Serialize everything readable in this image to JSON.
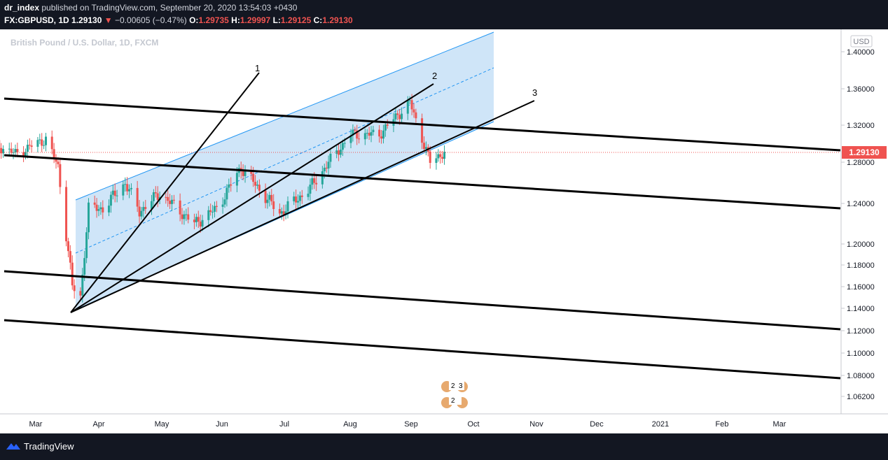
{
  "header": {
    "publisher": "dr_index",
    "published_text": " published on TradingView.com, September 20, 2020 13:54:03 +0430",
    "symbol": "FX:GBPUSD, 1D",
    "last": "1.29130",
    "change": "−0.00605 (−0.47%)",
    "o_label": "O:",
    "o_value": "1.29735",
    "h_label": "H:",
    "h_value": "1.29997",
    "l_label": "L:",
    "l_value": "1.29125",
    "c_label": "C:",
    "c_value": "1.29130"
  },
  "chart_title": "British Pound / U.S. Dollar, 1D, FXCM",
  "currency_badge": "USD",
  "price_tag": "1.29130",
  "footer": {
    "brand": "TradingView"
  },
  "event_badges": [
    "2",
    "3",
    "2"
  ],
  "annotations": [
    "1",
    "2",
    "3"
  ],
  "colors": {
    "up": "#26a69a",
    "down": "#ef5350",
    "channel_fill": "#cfe5f8",
    "channel_line": "#2196f3",
    "background": "#ffffff",
    "bar": "#131722"
  },
  "chart_data": {
    "type": "candlestick",
    "title": "British Pound / U.S. Dollar, 1D, FXCM",
    "y_ticks": [
      "1.40000",
      "1.36000",
      "1.32000",
      "1.28000",
      "1.24000",
      "1.20000",
      "1.18000",
      "1.16000",
      "1.14000",
      "1.12000",
      "1.10000",
      "1.08000",
      "1.06200"
    ],
    "x_ticks": [
      "Mar",
      "Apr",
      "May",
      "Jun",
      "Jul",
      "Aug",
      "Sep",
      "Oct",
      "Nov",
      "Dec",
      "2021",
      "Feb",
      "Mar"
    ],
    "ylim": [
      1.05,
      1.41
    ],
    "last_price": 1.2913,
    "close_series": [
      {
        "date": "2020-02-10",
        "close": 1.299
      },
      {
        "date": "2020-02-20",
        "close": 1.289
      },
      {
        "date": "2020-03-06",
        "close": 1.305
      },
      {
        "date": "2020-03-12",
        "close": 1.275
      },
      {
        "date": "2020-03-19",
        "close": 1.16
      },
      {
        "date": "2020-03-23",
        "close": 1.15
      },
      {
        "date": "2020-03-27",
        "close": 1.235
      },
      {
        "date": "2020-04-03",
        "close": 1.235
      },
      {
        "date": "2020-04-14",
        "close": 1.26
      },
      {
        "date": "2020-04-21",
        "close": 1.232
      },
      {
        "date": "2020-05-01",
        "close": 1.25
      },
      {
        "date": "2020-05-18",
        "close": 1.22
      },
      {
        "date": "2020-05-29",
        "close": 1.235
      },
      {
        "date": "2020-06-10",
        "close": 1.275
      },
      {
        "date": "2020-06-29",
        "close": 1.23
      },
      {
        "date": "2020-07-14",
        "close": 1.255
      },
      {
        "date": "2020-08-03",
        "close": 1.31
      },
      {
        "date": "2020-08-17",
        "close": 1.31
      },
      {
        "date": "2020-09-01",
        "close": 1.345
      },
      {
        "date": "2020-09-11",
        "close": 1.28
      },
      {
        "date": "2020-09-18",
        "close": 1.2913
      }
    ],
    "drawings": {
      "regression_channel": {
        "start": "2020-03-23",
        "end": "2020-10-10"
      },
      "fan_lines": [
        "1",
        "2",
        "3"
      ],
      "horizontal_trendlines": 4
    }
  }
}
